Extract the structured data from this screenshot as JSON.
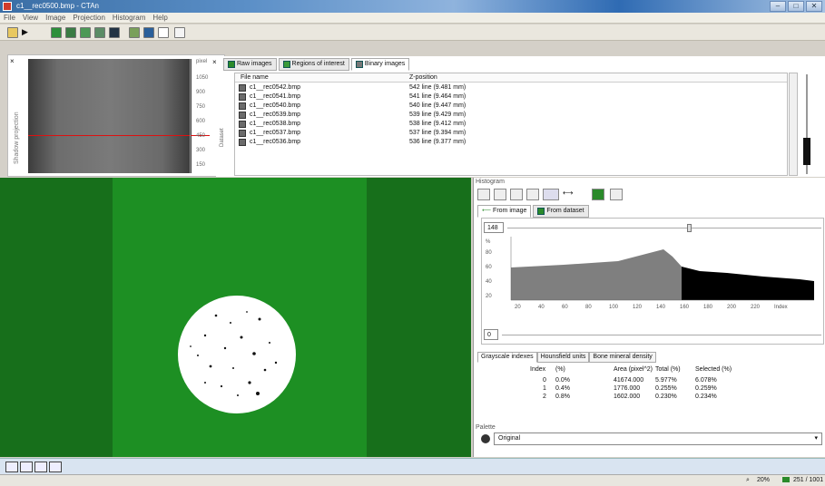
{
  "window": {
    "title": "c1__rec0500.bmp - CTAn"
  },
  "menu": [
    "File",
    "View",
    "Image",
    "Projection",
    "Histogram",
    "Help"
  ],
  "shadow": {
    "ruler_unit": "pixel",
    "ruler_ticks": [
      "1050",
      "900",
      "750",
      "600",
      "450",
      "300",
      "150"
    ],
    "side_label": "Shadow projection",
    "dataset_label": "Dataset"
  },
  "tabs": [
    "Raw images",
    "Regions of interest",
    "Binary images"
  ],
  "filelist": {
    "headers": [
      "File name",
      "Z-position"
    ],
    "rows": [
      [
        "c1__rec0542.bmp",
        "542 line (9.481 mm)"
      ],
      [
        "c1__rec0541.bmp",
        "541 line (9.464 mm)"
      ],
      [
        "c1__rec0540.bmp",
        "540 line (9.447 mm)"
      ],
      [
        "c1__rec0539.bmp",
        "539 line (9.429 mm)"
      ],
      [
        "c1__rec0538.bmp",
        "538 line (9.412 mm)"
      ],
      [
        "c1__rec0537.bmp",
        "537 line (9.394 mm)"
      ],
      [
        "c1__rec0536.bmp",
        "536 line (9.377 mm)"
      ]
    ]
  },
  "histogram": {
    "label": "Histogram",
    "subtabs": [
      "From image",
      "From dataset"
    ],
    "threshold_high": "148",
    "threshold_low": "0",
    "y_ticks": [
      "%",
      "80",
      "60",
      "40",
      "20"
    ],
    "x_ticks": [
      "20",
      "40",
      "60",
      "80",
      "100",
      "120",
      "140",
      "160",
      "180",
      "200",
      "220",
      "Index"
    ],
    "colors": {
      "selected": "#000000",
      "unselected": "#7f7f7f"
    }
  },
  "grayscale_tabs": [
    "Grayscale indexes",
    "Hounsfield units",
    "Bone mineral density"
  ],
  "table": {
    "headers": [
      "Index",
      "(%)",
      "Area (pixel^2)",
      "Total (%)",
      "Selected (%)"
    ],
    "rows": [
      [
        "0",
        "0.0%",
        "41674.000",
        "5.977%",
        "6.078%"
      ],
      [
        "1",
        "0.4%",
        "1776.000",
        "0.255%",
        "0.259%"
      ],
      [
        "2",
        "0.8%",
        "1602.000",
        "0.230%",
        "0.234%"
      ]
    ]
  },
  "palette": {
    "label": "Palette",
    "value": "Original"
  },
  "status": {
    "zoom": "20%",
    "image_index": "251 / 1001"
  }
}
